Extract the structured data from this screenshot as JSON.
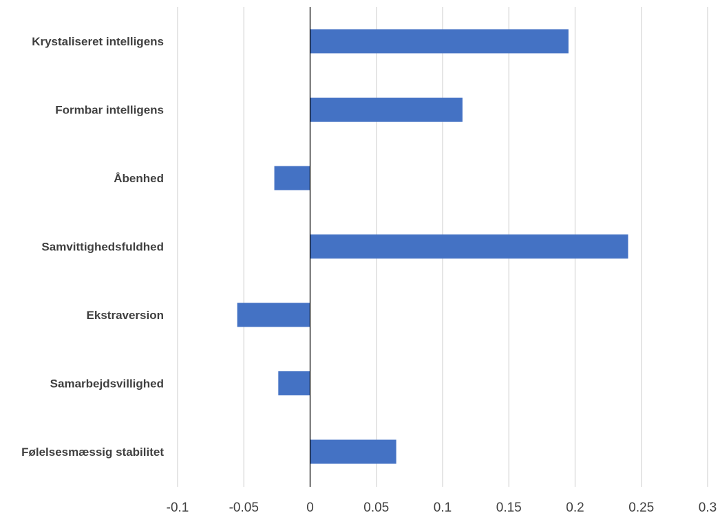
{
  "chart_data": {
    "type": "bar",
    "orientation": "horizontal",
    "categories": [
      "Krystaliseret intelligens",
      "Formbar intelligens",
      "Åbenhed",
      "Samvittighedsfuldhed",
      "Ekstraversion",
      "Samarbejdsvillighed",
      "Følelsesmæssig stabilitet"
    ],
    "values": [
      0.195,
      0.115,
      -0.027,
      0.24,
      -0.055,
      -0.024,
      0.065
    ],
    "xlim": [
      -0.1,
      0.3
    ],
    "x_ticks": [
      -0.1,
      -0.05,
      0,
      0.05,
      0.1,
      0.15,
      0.2,
      0.25,
      0.3
    ],
    "x_tick_labels": [
      "-0.1",
      "-0.05",
      "0",
      "0.05",
      "0.1",
      "0.15",
      "0.2",
      "0.25",
      "0.3"
    ],
    "title": "",
    "xlabel": "",
    "ylabel": "",
    "grid": "vertical",
    "legend": "none",
    "bar_color": "#4472C4",
    "grid_color": "#D9D9D9",
    "axis_color": "#000000"
  }
}
